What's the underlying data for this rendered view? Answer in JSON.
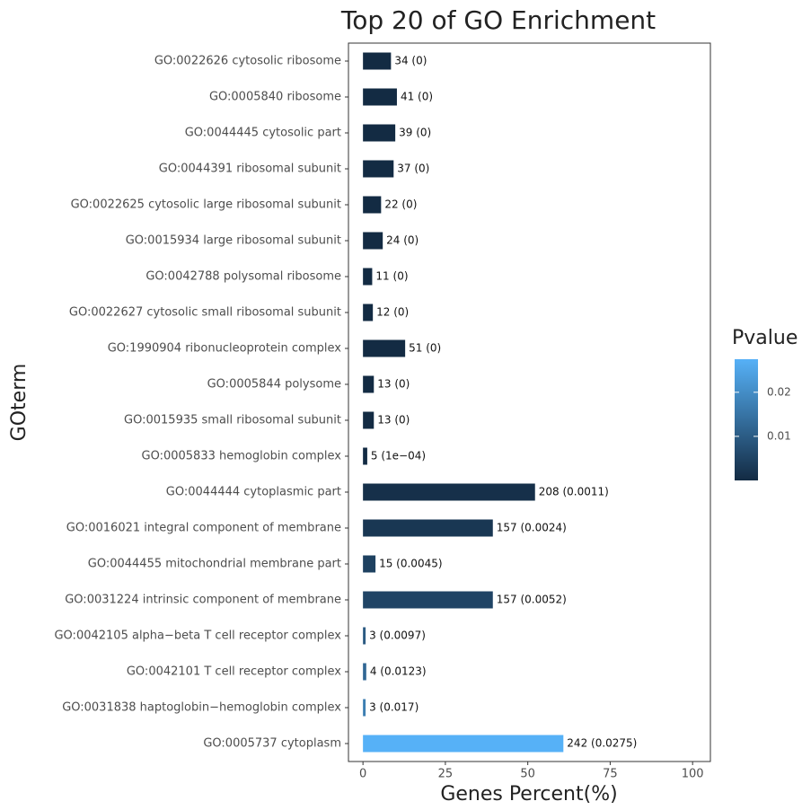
{
  "chart_data": {
    "type": "barh",
    "title": "Top 20 of GO Enrichment",
    "x_label": "Genes Percent(%)",
    "y_label": "GOterm",
    "categories": [
      "GO:0022626 cytosolic ribosome",
      "GO:0005840 ribosome",
      "GO:0044445 cytosolic part",
      "GO:0044391 ribosomal subunit",
      "GO:0022625 cytosolic large ribosomal subunit",
      "GO:0015934 large ribosomal subunit",
      "GO:0042788 polysomal ribosome",
      "GO:0022627 cytosolic small ribosomal subunit",
      "GO:1990904 ribonucleoprotein complex",
      "GO:0005844 polysome",
      "GO:0015935 small ribosomal subunit",
      "GO:0005833 hemoglobin complex",
      "GO:0044444 cytoplasmic part",
      "GO:0016021 integral component of membrane",
      "GO:0044455 mitochondrial membrane part",
      "GO:0031224 intrinsic component of membrane",
      "GO:0042105 alpha−beta T cell receptor complex",
      "GO:0042101 T cell receptor complex",
      "GO:0031838 haptoglobin−hemoglobin complex",
      "GO:0005737 cytoplasm"
    ],
    "values": [
      8.5,
      10.3,
      9.8,
      9.3,
      5.5,
      6.0,
      2.8,
      3.0,
      12.8,
      3.3,
      3.3,
      1.3,
      52.2,
      39.4,
      3.8,
      39.4,
      0.8,
      1.0,
      0.8,
      60.8
    ],
    "value_labels": [
      "34 (0)",
      "41 (0)",
      "39 (0)",
      "37 (0)",
      "22 (0)",
      "24 (0)",
      "11 (0)",
      "12 (0)",
      "51 (0)",
      "13 (0)",
      "13 (0)",
      "5 (1e−04)",
      "208 (0.0011)",
      "157 (0.0024)",
      "15 (0.0045)",
      "157 (0.0052)",
      "3 (0.0097)",
      "4 (0.0123)",
      "3 (0.017)",
      "242 (0.0275)"
    ],
    "pvalues": [
      0,
      0,
      0,
      0,
      0,
      0,
      0,
      0,
      0,
      0,
      0,
      0.0001,
      0.0011,
      0.0024,
      0.0045,
      0.0052,
      0.0097,
      0.0123,
      0.017,
      0.0275
    ],
    "xlim": [
      -4.4,
      105.4
    ],
    "xticks": [
      0,
      25,
      50,
      75,
      100
    ],
    "colorbar": {
      "title": "Pvalue",
      "lim": [
        0,
        0.0275
      ],
      "ticks": [
        0.01,
        0.02
      ],
      "low": "#132B43",
      "high": "#56B1F7"
    }
  }
}
